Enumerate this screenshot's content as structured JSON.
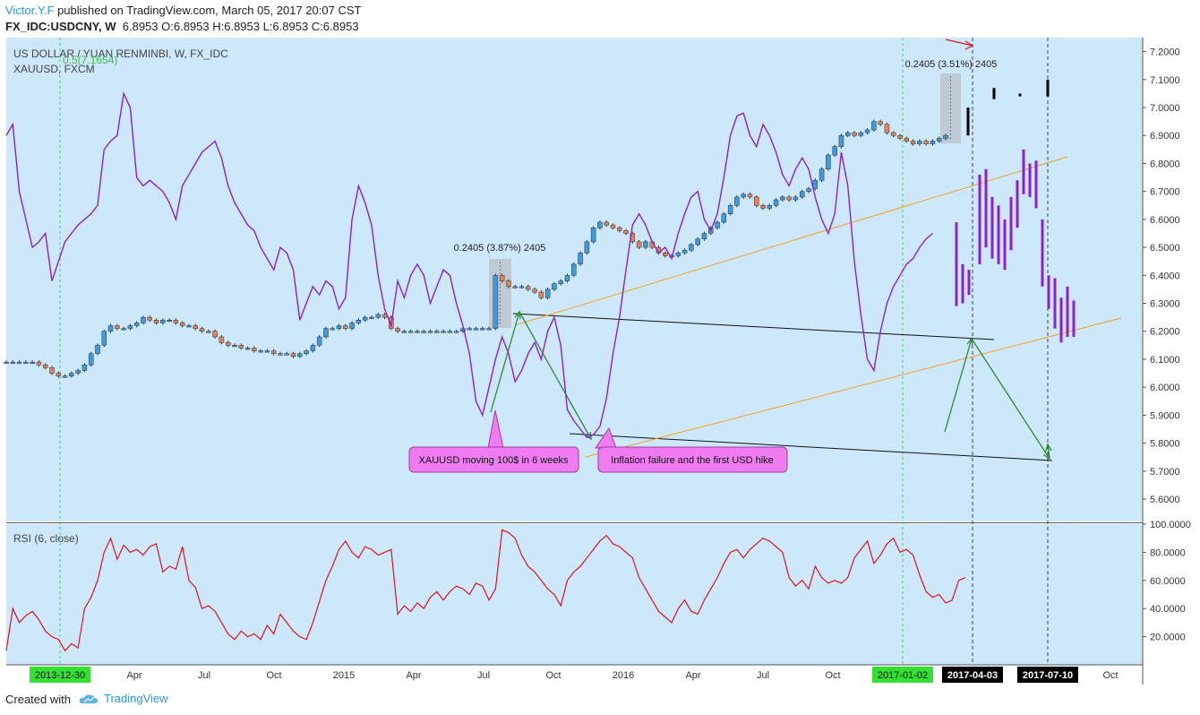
{
  "header": {
    "author": "Victor.Y.F",
    "published_text": "published on TradingView.com, March 05, 2017 20:07 CST",
    "symbol": "FX_IDC:USDCNY, W",
    "ohlc_text": "6.8953 O:6.8953 H:6.8953 L:6.8953 C:6.8953"
  },
  "footer": {
    "created_with": "Created with",
    "brand": "TradingView"
  },
  "chart_data": {
    "type": "line",
    "main_title": "US DOLLAR / YUAN RENMINBI, W, FX_IDC",
    "overlay_label": "XAUUSD, FXCM",
    "fib_label": "0.5(7.1654)",
    "yaxis_ticks": [
      "7.2000",
      "7.1000",
      "7.0000",
      "6.9000",
      "6.8000",
      "6.7000",
      "6.6000",
      "6.5000",
      "6.4000",
      "6.3000",
      "6.2000",
      "6.1000",
      "6.0000",
      "5.9000",
      "5.8000",
      "5.7000",
      "5.6000"
    ],
    "ylim": [
      5.52,
      7.25
    ],
    "rsi_label": "RSI (6, close)",
    "rsi_ticks": [
      "100.0000",
      "80.0000",
      "60.0000",
      "40.0000",
      "20.0000"
    ],
    "rsi_ylim": [
      0,
      100
    ],
    "xaxis_ticks": [
      "Apr",
      "Jul",
      "Oct",
      "2015",
      "Apr",
      "Jul",
      "Oct",
      "2016",
      "Apr",
      "Jul",
      "Oct",
      "Apr",
      "Jul",
      "Oct"
    ],
    "highlight_dates": [
      "2013-12-30",
      "2017-01-02"
    ],
    "marker_dates": [
      "2017-04-03",
      "2017-07-10"
    ],
    "annotations": {
      "range1": "0.2405 (3.87%) 2405",
      "range2": "0.2405 (3.51%) 2405",
      "callout1": "XAUUSD moving 100$ in 6 weeks",
      "callout2": "Inflation failure and the first USD hike"
    },
    "series": [
      {
        "name": "USDCNY",
        "color": "#3d9be0",
        "values": [
          6.09,
          6.09,
          6.09,
          6.09,
          6.09,
          6.08,
          6.07,
          6.05,
          6.04,
          6.04,
          6.05,
          6.06,
          6.08,
          6.12,
          6.15,
          6.2,
          6.22,
          6.21,
          6.21,
          6.22,
          6.23,
          6.25,
          6.24,
          6.23,
          6.24,
          6.24,
          6.23,
          6.22,
          6.22,
          6.21,
          6.2,
          6.2,
          6.18,
          6.16,
          6.15,
          6.15,
          6.14,
          6.14,
          6.13,
          6.13,
          6.13,
          6.12,
          6.12,
          6.12,
          6.11,
          6.12,
          6.13,
          6.15,
          6.18,
          6.21,
          6.21,
          6.22,
          6.21,
          6.23,
          6.24,
          6.25,
          6.25,
          6.26,
          6.25,
          6.21,
          6.2,
          6.2,
          6.2,
          6.2,
          6.2,
          6.2,
          6.2,
          6.2,
          6.2,
          6.2,
          6.21,
          6.21,
          6.21,
          6.21,
          6.21,
          6.4,
          6.38,
          6.36,
          6.36,
          6.36,
          6.35,
          6.34,
          6.32,
          6.35,
          6.37,
          6.38,
          6.4,
          6.44,
          6.48,
          6.52,
          6.57,
          6.59,
          6.58,
          6.57,
          6.56,
          6.55,
          6.52,
          6.5,
          6.52,
          6.5,
          6.48,
          6.47,
          6.47,
          6.48,
          6.49,
          6.51,
          6.53,
          6.55,
          6.57,
          6.59,
          6.62,
          6.65,
          6.68,
          6.69,
          6.68,
          6.65,
          6.64,
          6.65,
          6.67,
          6.68,
          6.67,
          6.68,
          6.7,
          6.71,
          6.74,
          6.78,
          6.83,
          6.86,
          6.9,
          6.91,
          6.9,
          6.91,
          6.92,
          6.95,
          6.94,
          6.91,
          6.9,
          6.89,
          6.88,
          6.87,
          6.88,
          6.87,
          6.88,
          6.89,
          6.9
        ]
      },
      {
        "name": "XAUUSD",
        "color": "#8c1fd2",
        "values": [
          6.9,
          6.94,
          6.7,
          6.6,
          6.5,
          6.52,
          6.55,
          6.38,
          6.45,
          6.52,
          6.55,
          6.58,
          6.6,
          6.62,
          6.65,
          6.85,
          6.88,
          6.9,
          7.05,
          7.0,
          6.75,
          6.72,
          6.74,
          6.72,
          6.7,
          6.66,
          6.6,
          6.72,
          6.76,
          6.8,
          6.84,
          6.86,
          6.88,
          6.82,
          6.72,
          6.66,
          6.62,
          6.58,
          6.56,
          6.5,
          6.46,
          6.42,
          6.5,
          6.48,
          6.42,
          6.24,
          6.3,
          6.36,
          6.33,
          6.38,
          6.36,
          6.28,
          6.32,
          6.6,
          6.72,
          6.66,
          6.58,
          6.4,
          6.28,
          6.22,
          6.38,
          6.32,
          6.4,
          6.44,
          6.4,
          6.3,
          6.36,
          6.42,
          6.4,
          6.3,
          6.22,
          6.12,
          5.95,
          5.9,
          6.0,
          6.1,
          6.18,
          6.12,
          6.02,
          6.06,
          6.12,
          6.16,
          6.1,
          6.2,
          6.25,
          6.15,
          5.92,
          5.88,
          5.85,
          5.82,
          5.83,
          5.86,
          5.96,
          6.12,
          6.25,
          6.42,
          6.58,
          6.62,
          6.58,
          6.52,
          6.48,
          6.5,
          6.46,
          6.55,
          6.62,
          6.68,
          6.7,
          6.6,
          6.56,
          6.62,
          6.75,
          6.9,
          6.97,
          6.98,
          6.9,
          6.86,
          6.94,
          6.9,
          6.84,
          6.76,
          6.72,
          6.78,
          6.82,
          6.78,
          6.68,
          6.6,
          6.55,
          6.62,
          6.84,
          6.72,
          6.45,
          6.26,
          6.1,
          6.06,
          6.2,
          6.3,
          6.36,
          6.4,
          6.44,
          6.46,
          6.5,
          6.53,
          6.55
        ]
      },
      {
        "name": "RSI",
        "color": "#e0141e",
        "values": [
          10,
          40,
          30,
          35,
          38,
          32,
          24,
          20,
          18,
          10,
          15,
          12,
          40,
          48,
          60,
          80,
          90,
          75,
          85,
          80,
          82,
          78,
          84,
          86,
          66,
          70,
          68,
          84,
          60,
          55,
          40,
          42,
          38,
          30,
          22,
          18,
          24,
          20,
          22,
          18,
          28,
          22,
          36,
          30,
          24,
          20,
          18,
          30,
          45,
          60,
          70,
          82,
          88,
          80,
          76,
          84,
          82,
          78,
          80,
          82,
          36,
          42,
          38,
          44,
          40,
          48,
          52,
          46,
          52,
          56,
          54,
          50,
          58,
          56,
          46,
          54,
          96,
          94,
          90,
          78,
          70,
          66,
          60,
          54,
          50,
          42,
          60,
          66,
          70,
          76,
          82,
          88,
          92,
          86,
          84,
          80,
          76,
          62,
          54,
          46,
          38,
          34,
          30,
          40,
          46,
          38,
          36,
          46,
          54,
          62,
          72,
          80,
          82,
          76,
          82,
          86,
          90,
          88,
          84,
          80,
          62,
          56,
          60,
          54,
          70,
          62,
          58,
          60,
          58,
          62,
          76,
          82,
          88,
          72,
          78,
          86,
          90,
          80,
          82,
          78,
          64,
          52,
          48,
          50,
          44,
          46,
          60,
          62
        ]
      }
    ]
  }
}
